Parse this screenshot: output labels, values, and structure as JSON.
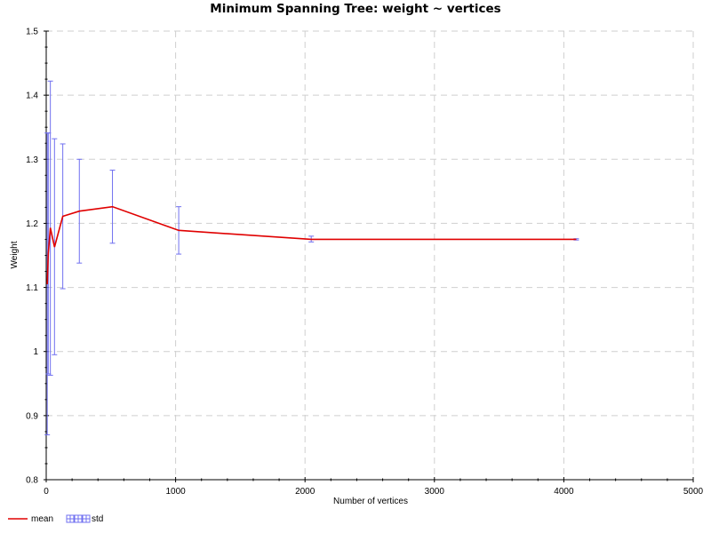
{
  "chart_data": {
    "type": "line",
    "title": "Minimum Spanning Tree: weight ~ vertices",
    "xlabel": "Number of vertices",
    "ylabel": "Weight",
    "xlim": [
      0,
      5000
    ],
    "ylim": [
      0.8,
      1.5
    ],
    "xticks": [
      0,
      1000,
      2000,
      3000,
      4000,
      5000
    ],
    "yticks": [
      0.8,
      0.9,
      1,
      1.1,
      1.2,
      1.3,
      1.4,
      1.5
    ],
    "grid": true,
    "legend_placement": "bottom-left",
    "series": [
      {
        "name": "mean",
        "color": "#e00000",
        "x": [
          8,
          16,
          32,
          64,
          128,
          256,
          512,
          1024,
          2048,
          4096
        ],
        "y": [
          1.105,
          1.153,
          1.193,
          1.163,
          1.211,
          1.219,
          1.226,
          1.189,
          1.175,
          1.175
        ]
      },
      {
        "name": "std",
        "color": "#7070f0",
        "type": "errorbar",
        "x": [
          8,
          16,
          32,
          64,
          128,
          256,
          512,
          1024,
          2048,
          4096
        ],
        "y": [
          1.105,
          1.153,
          1.193,
          1.163,
          1.211,
          1.219,
          1.226,
          1.189,
          1.175,
          1.175
        ],
        "lower": [
          0.87,
          0.965,
          0.963,
          0.995,
          1.098,
          1.138,
          1.169,
          1.152,
          1.171,
          1.174
        ],
        "upper": [
          1.341,
          1.341,
          1.422,
          1.332,
          1.324,
          1.3,
          1.283,
          1.226,
          1.18,
          1.176
        ]
      }
    ]
  }
}
